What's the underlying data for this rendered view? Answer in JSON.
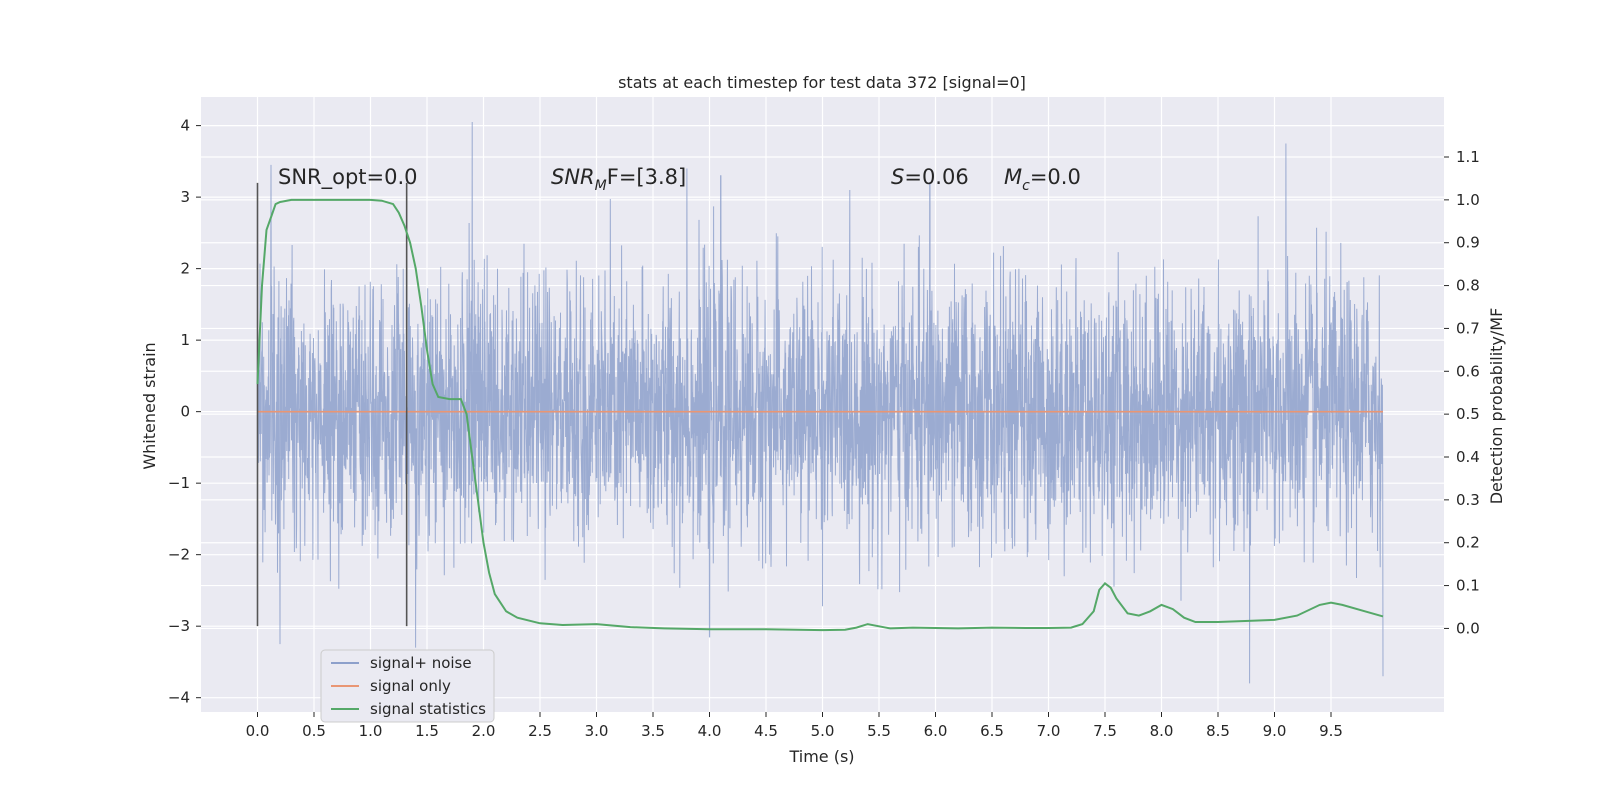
{
  "chart_data": {
    "type": "line",
    "title": "stats at each timestep for test data 372 [signal=0]",
    "xlabel": "Time (s)",
    "ylabel": "Whitened strain",
    "ylabel_right": "Detection probability/MF",
    "xlim": [
      -0.5,
      10.5
    ],
    "ylim": [
      -4.2,
      4.4
    ],
    "ylim_right": [
      -0.195,
      1.24
    ],
    "xticks": [
      "0.0",
      "0.5",
      "1.0",
      "1.5",
      "2.0",
      "2.5",
      "3.0",
      "3.5",
      "4.0",
      "4.5",
      "5.0",
      "5.5",
      "6.0",
      "6.5",
      "7.0",
      "7.5",
      "8.0",
      "8.5",
      "9.0",
      "9.5"
    ],
    "yticks": [
      "4",
      "3",
      "2",
      "1",
      "0",
      "−1",
      "−2",
      "−3",
      "−4"
    ],
    "yticks_right": [
      "1.1",
      "1.0",
      "0.9",
      "0.8",
      "0.7",
      "0.6",
      "0.5",
      "0.4",
      "0.3",
      "0.2",
      "0.1",
      "0.0"
    ],
    "grid": true,
    "legend_position": "bottom-left",
    "colors": {
      "plot_bg": "#eaeaf2",
      "noise": "#8da0cb",
      "signal_only": "#e99674",
      "statistics": "#55a868",
      "markers": "#555555",
      "text": "#262626"
    },
    "annotations": {
      "snr_opt": "SNR_opt=0.0",
      "snr_mf_base": "SNR",
      "snr_mf_sub": "M",
      "snr_mf_rest": "F=[3.8]",
      "s_var": "S",
      "s_rest": "=0.06",
      "mc_var": "M",
      "mc_sub": "c",
      "mc_rest": "=0.0"
    },
    "vertical_markers": [
      {
        "x": 0.0,
        "y_range": [
          -3.0,
          3.2
        ]
      },
      {
        "x": 1.32,
        "y_range": [
          -3.0,
          3.2
        ]
      }
    ],
    "series": [
      {
        "name": "signal+ noise",
        "x_range": [
          0.0,
          9.96
        ],
        "description_stats": {
          "mean": 0.0,
          "std": 0.9,
          "max": 4.05,
          "min": -3.8
        },
        "notable_peaks": [
          [
            0.12,
            3.45
          ],
          [
            1.9,
            4.05
          ],
          [
            3.8,
            3.4
          ],
          [
            4.1,
            3.3
          ],
          [
            5.95,
            3.2
          ],
          [
            9.1,
            3.75
          ],
          [
            1.4,
            -3.3
          ],
          [
            0.2,
            -3.25
          ],
          [
            4.0,
            -3.15
          ],
          [
            8.78,
            -3.8
          ],
          [
            9.96,
            -3.7
          ]
        ]
      },
      {
        "name": "signal only",
        "x": [
          0.0,
          9.96
        ],
        "y": [
          0.0,
          0.0
        ]
      },
      {
        "name": "signal statistics",
        "axis": "right",
        "x": [
          0.0,
          0.04,
          0.08,
          0.12,
          0.16,
          0.2,
          0.3,
          0.5,
          0.8,
          1.0,
          1.1,
          1.2,
          1.25,
          1.3,
          1.35,
          1.4,
          1.45,
          1.5,
          1.55,
          1.6,
          1.7,
          1.8,
          1.85,
          1.9,
          1.95,
          2.0,
          2.05,
          2.1,
          2.2,
          2.3,
          2.5,
          2.7,
          3.0,
          3.3,
          3.6,
          4.0,
          4.5,
          5.0,
          5.2,
          5.3,
          5.4,
          5.5,
          5.6,
          5.8,
          6.0,
          6.2,
          6.5,
          6.8,
          7.0,
          7.2,
          7.3,
          7.4,
          7.45,
          7.5,
          7.55,
          7.6,
          7.7,
          7.8,
          7.9,
          8.0,
          8.1,
          8.2,
          8.3,
          8.5,
          8.8,
          9.0,
          9.2,
          9.4,
          9.5,
          9.6,
          9.8,
          9.96
        ],
        "y": [
          0.57,
          0.8,
          0.93,
          0.96,
          0.99,
          0.995,
          1.0,
          1.0,
          1.0,
          1.0,
          0.998,
          0.99,
          0.97,
          0.94,
          0.9,
          0.84,
          0.75,
          0.65,
          0.57,
          0.54,
          0.535,
          0.535,
          0.5,
          0.4,
          0.3,
          0.2,
          0.13,
          0.08,
          0.04,
          0.025,
          0.012,
          0.008,
          0.01,
          0.003,
          0.0,
          -0.002,
          -0.002,
          -0.004,
          -0.003,
          0.002,
          0.01,
          0.005,
          0.0,
          0.002,
          0.001,
          0.0,
          0.002,
          0.001,
          0.001,
          0.002,
          0.01,
          0.04,
          0.09,
          0.105,
          0.095,
          0.07,
          0.035,
          0.03,
          0.04,
          0.055,
          0.045,
          0.025,
          0.015,
          0.015,
          0.018,
          0.02,
          0.03,
          0.055,
          0.06,
          0.055,
          0.04,
          0.028
        ]
      }
    ]
  }
}
